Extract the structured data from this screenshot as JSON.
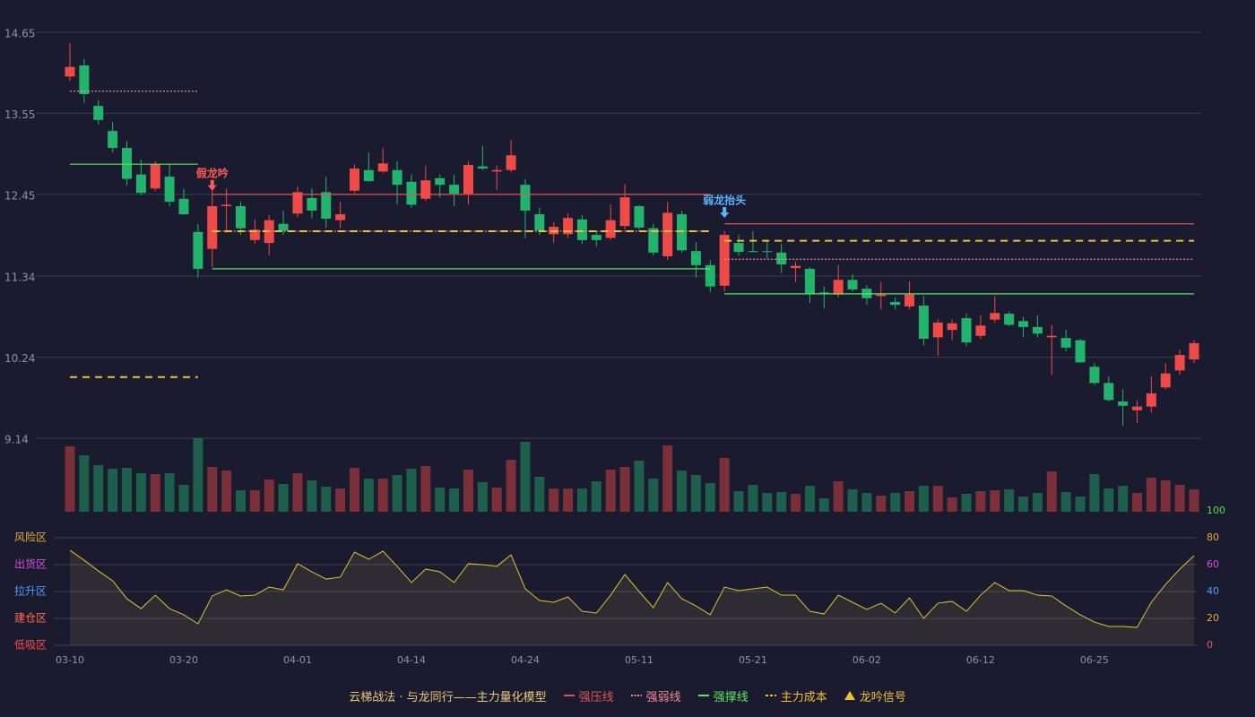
{
  "chart_data": {
    "type": "candlestick",
    "categories": [
      "03-10",
      null,
      null,
      null,
      null,
      null,
      null,
      null,
      "03-20",
      null,
      null,
      null,
      null,
      null,
      null,
      null,
      "04-01",
      null,
      null,
      null,
      null,
      null,
      null,
      null,
      "04-14",
      null,
      null,
      null,
      null,
      null,
      null,
      null,
      "04-24",
      null,
      null,
      null,
      null,
      null,
      null,
      null,
      "05-11",
      null,
      null,
      null,
      null,
      null,
      null,
      null,
      "05-21",
      null,
      null,
      null,
      null,
      null,
      null,
      null,
      "06-02",
      null,
      null,
      null,
      null,
      null,
      null,
      null,
      "06-12",
      null,
      null,
      null,
      null,
      null,
      null,
      null,
      "06-25",
      null,
      null,
      null,
      null,
      null,
      null,
      null
    ],
    "open": [
      14.05,
      14.2,
      13.65,
      13.31,
      13.08,
      12.72,
      12.53,
      12.69,
      12.39,
      11.94,
      11.71,
      12.29,
      12.29,
      11.83,
      11.79,
      12.05,
      12.19,
      12.4,
      12.48,
      12.1,
      12.5,
      12.78,
      12.76,
      12.78,
      12.62,
      12.39,
      12.67,
      12.58,
      12.46,
      12.83,
      12.76,
      12.78,
      12.58,
      12.18,
      11.91,
      11.91,
      12.11,
      11.9,
      11.86,
      12.02,
      12.29,
      11.99,
      11.61,
      12.18,
      11.68,
      11.49,
      11.21,
      11.79,
      11.68,
      11.68,
      11.66,
      11.45,
      11.44,
      11.12,
      11.09,
      11.29,
      11.17,
      11.07,
      10.99,
      10.93,
      10.94,
      10.51,
      10.61,
      10.77,
      10.53,
      10.75,
      10.83,
      10.73,
      10.65,
      10.51,
      10.5,
      10.47,
      10.11,
      9.89,
      9.64,
      9.52,
      9.57,
      9.83,
      10.06,
      10.21
    ],
    "close": [
      14.18,
      13.81,
      13.46,
      13.08,
      12.66,
      12.47,
      12.86,
      12.35,
      12.18,
      11.44,
      12.29,
      12.31,
      11.99,
      11.97,
      12.1,
      11.96,
      12.48,
      12.23,
      12.12,
      12.18,
      12.8,
      12.63,
      12.87,
      12.58,
      12.31,
      12.64,
      12.58,
      12.46,
      12.85,
      12.8,
      12.78,
      12.98,
      12.23,
      11.96,
      12.01,
      12.13,
      11.83,
      11.83,
      12.1,
      12.41,
      12.0,
      11.66,
      12.2,
      11.69,
      11.49,
      11.2,
      11.9,
      11.67,
      11.67,
      11.67,
      11.5,
      11.48,
      11.1,
      11.11,
      11.29,
      11.16,
      11.04,
      11.09,
      10.95,
      11.09,
      10.49,
      10.71,
      10.7,
      10.44,
      10.67,
      10.84,
      10.68,
      10.65,
      10.56,
      10.53,
      10.37,
      10.17,
      9.89,
      9.66,
      9.58,
      9.57,
      9.75,
      10.02,
      10.27,
      10.43
    ],
    "low": [
      13.99,
      13.69,
      13.4,
      13.02,
      12.57,
      12.44,
      12.5,
      12.29,
      12.17,
      11.32,
      11.46,
      11.93,
      11.9,
      11.78,
      11.62,
      11.9,
      12.14,
      12.13,
      11.99,
      11.99,
      12.47,
      12.62,
      12.74,
      12.31,
      12.27,
      12.36,
      12.41,
      12.29,
      12.31,
      12.78,
      12.51,
      12.75,
      11.86,
      11.9,
      11.79,
      11.86,
      11.78,
      11.74,
      11.83,
      11.97,
      11.97,
      11.62,
      11.56,
      11.66,
      11.32,
      11.12,
      11.13,
      11.62,
      11.66,
      11.58,
      11.38,
      11.26,
      10.98,
      10.9,
      11.05,
      11.13,
      10.95,
      10.89,
      10.89,
      10.89,
      10.4,
      10.26,
      10.47,
      10.39,
      10.49,
      10.71,
      10.66,
      10.51,
      10.51,
      10.0,
      10.32,
      10.16,
      9.86,
      9.64,
      9.31,
      9.35,
      9.49,
      9.8,
      10.0,
      10.16
    ],
    "high": [
      14.5,
      14.29,
      13.73,
      13.43,
      13.17,
      12.92,
      12.9,
      12.86,
      12.53,
      12.05,
      12.53,
      12.53,
      12.35,
      12.11,
      12.17,
      12.23,
      12.56,
      12.53,
      12.69,
      12.35,
      12.86,
      13.02,
      13.08,
      12.9,
      12.72,
      12.84,
      12.72,
      12.72,
      12.9,
      13.11,
      12.84,
      13.19,
      12.66,
      12.27,
      12.07,
      12.19,
      12.17,
      11.96,
      12.31,
      12.59,
      12.31,
      12.05,
      12.35,
      12.23,
      11.8,
      11.56,
      11.95,
      11.9,
      11.95,
      11.83,
      11.78,
      11.54,
      11.46,
      11.2,
      11.49,
      11.37,
      11.22,
      11.26,
      11.05,
      11.27,
      11.07,
      10.75,
      10.75,
      10.83,
      10.81,
      11.07,
      10.86,
      10.79,
      10.81,
      10.68,
      10.61,
      10.49,
      10.16,
      9.98,
      9.8,
      9.65,
      9.98,
      10.16,
      10.34,
      10.47
    ],
    "up_color": "#ef4a48",
    "down_color": "#22b46c",
    "ylim": [
      9.14,
      14.65
    ],
    "yticks": [
      14.65,
      13.55,
      12.45,
      11.34,
      10.24,
      9.14
    ],
    "grid": true,
    "overlays": [
      {
        "name": "强压线",
        "color": "#e05555",
        "style": "solid",
        "values": [
          null,
          null,
          null,
          null,
          null,
          null,
          null,
          null,
          null,
          null,
          12.45,
          12.45,
          12.45,
          12.45,
          12.45,
          12.45,
          12.45,
          12.45,
          12.45,
          12.45,
          12.45,
          12.45,
          12.45,
          12.45,
          12.45,
          12.45,
          12.45,
          12.45,
          12.45,
          12.45,
          12.45,
          12.45,
          12.45,
          12.45,
          12.45,
          12.45,
          12.45,
          12.45,
          12.45,
          12.45,
          12.45,
          12.45,
          12.45,
          12.45,
          12.45,
          12.45,
          12.05,
          12.05,
          12.05,
          12.05,
          12.05,
          12.05,
          12.05,
          12.05,
          12.05,
          12.05,
          12.05,
          12.05,
          12.05,
          12.05,
          12.05,
          12.05,
          12.05,
          12.05,
          12.05,
          12.05,
          12.05,
          12.05,
          12.05,
          12.05,
          12.05,
          12.05,
          12.05,
          12.05,
          12.05,
          12.05,
          12.05,
          12.05,
          12.05,
          12.05
        ]
      },
      {
        "name": "强弱线",
        "color": "#f08a96",
        "style": "dotted",
        "values": [
          13.85,
          13.85,
          13.85,
          13.85,
          13.85,
          13.85,
          13.85,
          13.85,
          13.85,
          13.85,
          11.95,
          11.95,
          11.95,
          11.95,
          11.95,
          11.95,
          11.95,
          11.95,
          11.95,
          11.95,
          11.95,
          11.95,
          11.95,
          11.95,
          11.95,
          11.95,
          11.95,
          11.95,
          11.95,
          11.95,
          11.95,
          11.95,
          11.95,
          11.95,
          11.95,
          11.95,
          11.95,
          11.95,
          11.95,
          11.95,
          11.95,
          11.95,
          11.95,
          11.95,
          11.95,
          11.95,
          11.57,
          11.57,
          11.57,
          11.57,
          11.57,
          11.57,
          11.57,
          11.57,
          11.57,
          11.57,
          11.57,
          11.57,
          11.57,
          11.57,
          11.57,
          11.57,
          11.57,
          11.57,
          11.57,
          11.57,
          11.57,
          11.57,
          11.57,
          11.57,
          11.57,
          11.57,
          11.57,
          11.57,
          11.57,
          11.57,
          11.57,
          11.57,
          11.57,
          11.57
        ]
      },
      {
        "name": "强撑线",
        "color": "#5ce65c",
        "style": "solid",
        "values": [
          12.86,
          12.86,
          12.86,
          12.86,
          12.86,
          12.86,
          12.86,
          12.86,
          12.86,
          12.86,
          11.44,
          11.44,
          11.44,
          11.44,
          11.44,
          11.44,
          11.44,
          11.44,
          11.44,
          11.44,
          11.44,
          11.44,
          11.44,
          11.44,
          11.44,
          11.44,
          11.44,
          11.44,
          11.44,
          11.44,
          11.44,
          11.44,
          11.44,
          11.44,
          11.44,
          11.44,
          11.44,
          11.44,
          11.44,
          11.44,
          11.44,
          11.44,
          11.44,
          11.44,
          11.44,
          11.44,
          11.1,
          11.1,
          11.1,
          11.1,
          11.1,
          11.1,
          11.1,
          11.1,
          11.1,
          11.1,
          11.1,
          11.1,
          11.1,
          11.1,
          11.1,
          11.1,
          11.1,
          11.1,
          11.1,
          11.1,
          11.1,
          11.1,
          11.1,
          11.1,
          11.1,
          11.1,
          11.1,
          11.1,
          11.1,
          11.1,
          11.1,
          11.1,
          11.1,
          11.1
        ]
      },
      {
        "name": "主力成本",
        "color": "#f0c030",
        "style": "dashed",
        "values": [
          9.97,
          9.97,
          9.97,
          9.97,
          9.97,
          9.97,
          9.97,
          9.97,
          9.97,
          9.97,
          11.95,
          11.95,
          11.95,
          11.95,
          11.95,
          11.95,
          11.95,
          11.95,
          11.95,
          11.95,
          11.95,
          11.95,
          11.95,
          11.95,
          11.95,
          11.95,
          11.95,
          11.95,
          11.95,
          11.95,
          11.95,
          11.95,
          11.95,
          11.95,
          11.95,
          11.95,
          11.95,
          11.95,
          11.95,
          11.95,
          11.95,
          11.95,
          11.95,
          11.95,
          11.95,
          11.95,
          11.82,
          11.82,
          11.82,
          11.82,
          11.82,
          11.82,
          11.82,
          11.82,
          11.82,
          11.82,
          11.82,
          11.82,
          11.82,
          11.82,
          11.82,
          11.82,
          11.82,
          11.82,
          11.82,
          11.82,
          11.82,
          11.82,
          11.82,
          11.82,
          11.82,
          11.82,
          11.82,
          11.82,
          11.82,
          11.82,
          11.82,
          11.82,
          11.82,
          11.82
        ]
      }
    ],
    "annotations": [
      {
        "text": "假龙吟",
        "x": 10,
        "y": 12.5,
        "color": "#ff5a5a"
      },
      {
        "text": "弱龙抬头",
        "x": 46,
        "y": 12.13,
        "color": "#5ab4ff"
      }
    ],
    "volume": {
      "values": [
        73,
        63,
        52,
        48,
        49,
        43,
        42,
        43,
        30,
        82,
        50,
        46,
        24,
        24,
        36,
        31,
        43,
        35,
        28,
        26,
        49,
        37,
        37,
        41,
        48,
        51,
        27,
        26,
        47,
        33,
        27,
        58,
        78,
        39,
        26,
        26,
        26,
        34,
        47,
        50,
        57,
        37,
        74,
        46,
        41,
        32,
        60,
        23,
        30,
        21,
        22,
        20,
        29,
        15,
        34,
        25,
        21,
        18,
        21,
        23,
        29,
        29,
        16,
        20,
        23,
        24,
        25,
        17,
        21,
        45,
        22,
        17,
        42,
        26,
        29,
        21,
        38,
        35,
        30,
        25
      ]
    },
    "indicator": {
      "color": "#e0c030",
      "values": [
        70.7,
        63.3,
        55.3,
        48,
        34.7,
        27.3,
        37.3,
        27.3,
        22.7,
        16,
        36.7,
        41.3,
        36.7,
        37.3,
        43.3,
        41.3,
        60.7,
        54.7,
        49.3,
        50.7,
        69.3,
        64,
        70,
        58.7,
        46.7,
        56.7,
        54.7,
        46.7,
        60.7,
        60,
        58.7,
        67.3,
        42,
        33.3,
        32,
        36,
        25.3,
        24,
        37.3,
        52.7,
        40,
        28,
        46.7,
        34.7,
        29.3,
        22.7,
        43.3,
        40.7,
        42,
        43.3,
        37.3,
        37.3,
        25.3,
        23.3,
        37.3,
        32,
        26.7,
        31.3,
        24,
        35.3,
        20,
        31.3,
        32.7,
        25.3,
        37.3,
        46.7,
        40.7,
        40.7,
        37.3,
        36.7,
        29.3,
        22.7,
        17.3,
        14,
        14,
        13.3,
        32,
        45.3,
        56.7,
        66.7
      ],
      "ylim": [
        0,
        100
      ],
      "yticks": [
        {
          "value": 80,
          "label": "风险区"
        },
        {
          "value": 60,
          "label": "出货区"
        },
        {
          "value": 40,
          "label": "拉升区"
        },
        {
          "value": 20,
          "label": "建仓区"
        },
        {
          "value": 0,
          "label": "低吸区"
        }
      ],
      "ytick_colors": [
        "#e8a83a",
        "#d94fe0",
        "#4a9eff",
        "#ff6a4a",
        "#ff4d4d"
      ],
      "y2lim": [
        0,
        100
      ],
      "y2ticks": [
        0,
        20,
        40,
        60,
        80,
        100
      ],
      "y2tick_colors": [
        "#ff4d4d",
        "#e8a83a",
        "#4a9eff",
        "#d94fe0",
        "#e8a83a",
        "#4ee04e"
      ]
    },
    "legend_title": "云梯战法 · 与龙同行——主力量化模型",
    "signal_legend": {
      "name": "龙吟信号",
      "color": "#f0c030"
    }
  }
}
